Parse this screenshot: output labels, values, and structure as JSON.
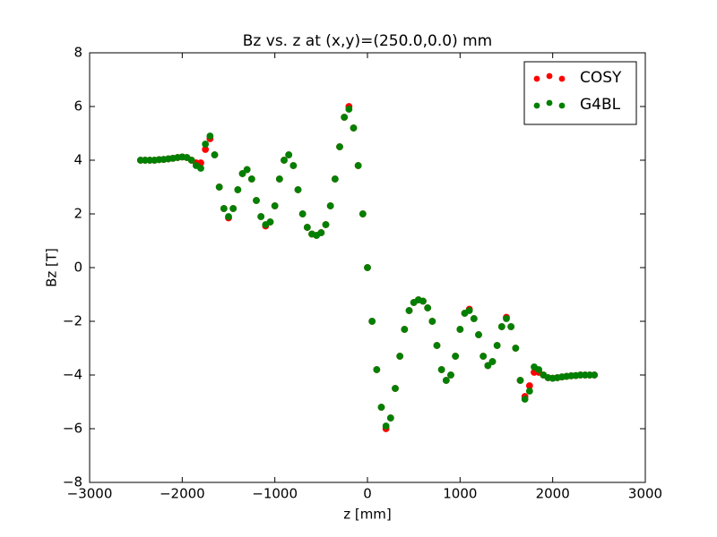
{
  "chart_data": {
    "type": "scatter",
    "title": "Bz vs. z at (x,y)=(250.0,0.0) mm",
    "x_label": "z [mm]",
    "y_label": "Bz [T]",
    "xlim": [
      -3000,
      3000
    ],
    "ylim": [
      -8,
      8
    ],
    "xticks": [
      {
        "value": -3000,
        "label": "−3000"
      },
      {
        "value": -2000,
        "label": "−2000"
      },
      {
        "value": -1000,
        "label": "−1000"
      },
      0,
      1000,
      2000,
      3000
    ],
    "yticks": [
      {
        "value": -8,
        "label": "−8"
      },
      {
        "value": -6,
        "label": "−6"
      },
      {
        "value": -4,
        "label": "−4"
      },
      {
        "value": -2,
        "label": "−2"
      },
      0,
      2,
      4,
      6,
      8
    ],
    "legend": "upper right",
    "x": [
      -2450,
      -2400,
      -2350,
      -2300,
      -2250,
      -2200,
      -2150,
      -2100,
      -2050,
      -2000,
      -1950,
      -1900,
      -1850,
      -1800,
      -1750,
      -1700,
      -1650,
      -1600,
      -1550,
      -1500,
      -1450,
      -1400,
      -1350,
      -1300,
      -1250,
      -1200,
      -1150,
      -1100,
      -1050,
      -1000,
      -950,
      -900,
      -850,
      -800,
      -750,
      -700,
      -650,
      -600,
      -550,
      -500,
      -450,
      -400,
      -350,
      -300,
      -250,
      -200,
      -150,
      -100,
      -50,
      0,
      50,
      100,
      150,
      200,
      250,
      300,
      350,
      400,
      450,
      500,
      550,
      600,
      650,
      700,
      750,
      800,
      850,
      900,
      950,
      1000,
      1050,
      1100,
      1150,
      1200,
      1250,
      1300,
      1350,
      1400,
      1450,
      1500,
      1550,
      1600,
      1650,
      1700,
      1750,
      1800,
      1850,
      1900,
      1950,
      2000,
      2050,
      2100,
      2150,
      2200,
      2250,
      2300,
      2350,
      2400,
      2450
    ],
    "series": [
      {
        "name": "COSY",
        "color": "#ff0000",
        "values": [
          4.0,
          4.0,
          4.0,
          4.0,
          4.02,
          4.03,
          4.05,
          4.07,
          4.1,
          4.12,
          4.1,
          4.0,
          3.9,
          3.9,
          4.4,
          4.8,
          4.2,
          3.0,
          2.2,
          1.85,
          2.2,
          2.9,
          3.5,
          3.65,
          3.3,
          2.5,
          1.9,
          1.55,
          1.7,
          2.3,
          3.3,
          4.0,
          4.2,
          3.8,
          2.9,
          2.0,
          1.5,
          1.25,
          1.2,
          1.3,
          1.6,
          2.3,
          3.3,
          4.5,
          5.6,
          6.0,
          5.2,
          3.8,
          2.0,
          0,
          -2.0,
          -3.8,
          -5.2,
          -6.0,
          -5.6,
          -4.5,
          -3.3,
          -2.3,
          -1.6,
          -1.3,
          -1.2,
          -1.25,
          -1.5,
          -2.0,
          -2.9,
          -3.8,
          -4.2,
          -4.0,
          -3.3,
          -2.3,
          -1.7,
          -1.55,
          -1.9,
          -2.5,
          -3.3,
          -3.65,
          -3.5,
          -2.9,
          -2.2,
          -1.85,
          -2.2,
          -3.0,
          -4.2,
          -4.8,
          -4.4,
          -3.9,
          -3.9,
          -4.0,
          -4.1,
          -4.12,
          -4.1,
          -4.07,
          -4.05,
          -4.03,
          -4.02,
          -4.0,
          -4.0,
          -4.0,
          -4.0
        ]
      },
      {
        "name": "G4BL",
        "color": "#008000",
        "values": [
          4.0,
          4.0,
          4.0,
          4.0,
          4.02,
          4.03,
          4.05,
          4.07,
          4.1,
          4.12,
          4.1,
          4.0,
          3.8,
          3.7,
          4.6,
          4.9,
          4.2,
          3.0,
          2.2,
          1.9,
          2.2,
          2.9,
          3.5,
          3.65,
          3.3,
          2.5,
          1.9,
          1.6,
          1.7,
          2.3,
          3.3,
          4.0,
          4.2,
          3.8,
          2.9,
          2.0,
          1.5,
          1.25,
          1.2,
          1.3,
          1.6,
          2.3,
          3.3,
          4.5,
          5.6,
          5.9,
          5.2,
          3.8,
          2.0,
          0,
          -2.0,
          -3.8,
          -5.2,
          -5.9,
          -5.6,
          -4.5,
          -3.3,
          -2.3,
          -1.6,
          -1.3,
          -1.2,
          -1.25,
          -1.5,
          -2.0,
          -2.9,
          -3.8,
          -4.2,
          -4.0,
          -3.3,
          -2.3,
          -1.7,
          -1.6,
          -1.9,
          -2.5,
          -3.3,
          -3.65,
          -3.5,
          -2.9,
          -2.2,
          -1.9,
          -2.2,
          -3.0,
          -4.2,
          -4.9,
          -4.6,
          -3.7,
          -3.8,
          -4.0,
          -4.1,
          -4.12,
          -4.1,
          -4.07,
          -4.05,
          -4.03,
          -4.02,
          -4.0,
          -4.0,
          -4.0,
          -4.0
        ]
      }
    ]
  }
}
